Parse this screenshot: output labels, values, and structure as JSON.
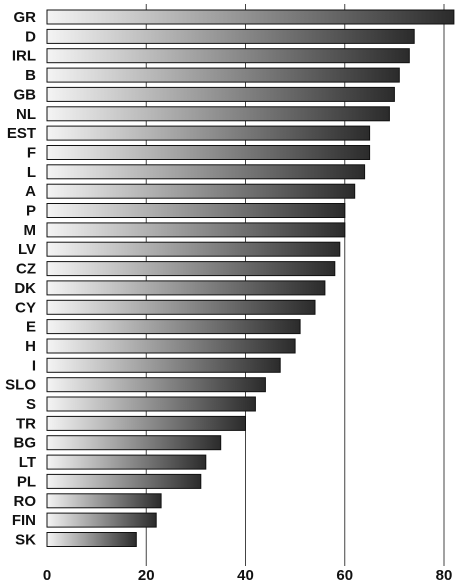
{
  "chart_data": {
    "type": "bar",
    "orientation": "horizontal",
    "categories": [
      "GR",
      "D",
      "IRL",
      "B",
      "GB",
      "NL",
      "EST",
      "F",
      "L",
      "A",
      "P",
      "M",
      "LV",
      "CZ",
      "DK",
      "CY",
      "E",
      "H",
      "I",
      "SLO",
      "S",
      "TR",
      "BG",
      "LT",
      "PL",
      "RO",
      "FIN",
      "SK"
    ],
    "values": [
      82,
      74,
      73,
      71,
      70,
      69,
      65,
      65,
      64,
      62,
      60,
      60,
      59,
      58,
      56,
      54,
      51,
      50,
      47,
      44,
      42,
      40,
      35,
      32,
      31,
      23,
      22,
      18
    ],
    "xlim": [
      0,
      80
    ],
    "xticks": [
      0,
      20,
      40,
      60,
      80
    ],
    "xtick_labels": [
      "0",
      "20",
      "40",
      "60",
      "80"
    ],
    "grid": "vertical gridlines at 20, 40, 60, 80",
    "bar_fill": "horizontal gradient, light grey to dark grey",
    "colors": {
      "bar_light": "#f4f4f4",
      "bar_dark": "#2b2b2b",
      "bar_outline": "#111111",
      "grid": "#444444"
    }
  }
}
